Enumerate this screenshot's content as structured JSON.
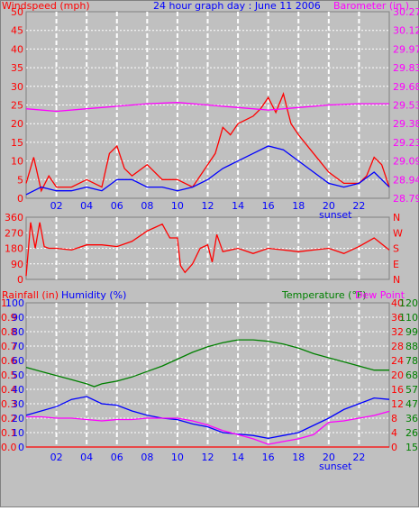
{
  "title": "24 hour graph day : June 11 2006",
  "colors": {
    "background": "#c0c0c0",
    "grid": "#ffffff",
    "wind_gust": "#ff0000",
    "wind_avg": "#0000ff",
    "barometer": "#ff00ff",
    "direction": "#ff0000",
    "rain": "#ff0000",
    "humidity": "#0000ff",
    "temperature": "#008000",
    "dewpoint": "#ff00ff"
  },
  "panel1": {
    "left_label": "Windspeed (mph)",
    "right_label": "Barometer (in.)",
    "left_ticks": [
      "50",
      "45",
      "40",
      "35",
      "30",
      "25",
      "20",
      "15",
      "10",
      "5",
      "0"
    ],
    "right_ticks": [
      "30.27",
      "30.12",
      "29.97",
      "29.83",
      "29.68",
      "29.53",
      "29.38",
      "29.23",
      "29.09",
      "28.94",
      "28.79"
    ]
  },
  "panel2": {
    "left_ticks": [
      "360",
      "270",
      "180",
      "90",
      "0"
    ],
    "right_ticks": [
      "N",
      "W",
      "S",
      "E",
      "N"
    ]
  },
  "panel3": {
    "rain_label": "Rainfall (in)",
    "humidity_label": "Humidity (%)",
    "temp_label": "Temperature (°F)",
    "dew_label": "Dew Point",
    "rain_ticks": [
      "1",
      "0.9",
      "0.8",
      "0.7",
      "0.6",
      "0.5",
      "0.4",
      "0.3",
      "0.2",
      "0.1",
      "0.0"
    ],
    "humidity_ticks": [
      "100",
      "90",
      "80",
      "70",
      "60",
      "50",
      "40",
      "30",
      "20",
      "10",
      "0"
    ],
    "celsius_ticks": [
      "40",
      "36",
      "32",
      "28",
      "24",
      "20",
      "16",
      "12",
      "8",
      "4",
      "0"
    ],
    "fahrenheit_ticks": [
      "120",
      "110",
      "99",
      "88",
      "78",
      "68",
      "57",
      "47",
      "36",
      "26",
      "15"
    ]
  },
  "x_ticks": [
    "02",
    "04",
    "06",
    "08",
    "10",
    "12",
    "14",
    "16",
    "18",
    "20",
    "22"
  ],
  "sunset_label": "sunset",
  "chart_data": [
    {
      "type": "line",
      "ylim": [
        0,
        50
      ],
      "y2lim": [
        28.79,
        30.27
      ],
      "xlim": [
        0,
        24
      ],
      "series": [
        {
          "axis": "left",
          "x": [
            0,
            0.5,
            1,
            1.5,
            2,
            3,
            4,
            5,
            5.5,
            6,
            6.5,
            7,
            8,
            9,
            10,
            11,
            12,
            12.5,
            13,
            13.5,
            14,
            14.5,
            15,
            15.5,
            16,
            16.5,
            17,
            17.5,
            18,
            19,
            20,
            21,
            22,
            22.5,
            23,
            23.5,
            24
          ],
          "values": [
            4,
            11,
            2,
            6,
            3,
            3,
            5,
            3,
            12,
            14,
            8,
            6,
            9,
            5,
            5,
            3,
            9,
            12,
            19,
            17,
            20,
            21,
            22,
            24,
            27,
            23,
            28,
            20,
            17,
            12,
            7,
            4,
            4,
            6,
            11,
            9,
            3
          ]
        },
        {
          "axis": "left",
          "x": [
            0,
            1,
            2,
            3,
            4,
            5,
            6,
            7,
            8,
            9,
            10,
            11,
            12,
            13,
            14,
            15,
            16,
            17,
            18,
            19,
            20,
            21,
            22,
            23,
            24
          ],
          "values": [
            1,
            3,
            2,
            2,
            3,
            2,
            5,
            5,
            3,
            3,
            2,
            3,
            5,
            8,
            10,
            12,
            14,
            13,
            10,
            7,
            4,
            3,
            4,
            7,
            3
          ]
        },
        {
          "axis": "right",
          "x": [
            0,
            2,
            4,
            6,
            8,
            10,
            12,
            14,
            16,
            18,
            20,
            22,
            24
          ],
          "values": [
            29.5,
            29.48,
            29.5,
            29.52,
            29.54,
            29.55,
            29.53,
            29.51,
            29.49,
            29.51,
            29.53,
            29.54,
            29.54
          ]
        }
      ]
    },
    {
      "type": "line",
      "ylim": [
        0,
        360
      ],
      "xlim": [
        0,
        24
      ],
      "series": [
        {
          "x": [
            0,
            0.3,
            0.6,
            0.9,
            1.2,
            1.5,
            2,
            3,
            4,
            5,
            6,
            7,
            8,
            8.5,
            9,
            9.5,
            10,
            10.2,
            10.5,
            11,
            11.5,
            12,
            12.3,
            12.6,
            13,
            14,
            15,
            16,
            17,
            18,
            19,
            20,
            21,
            22,
            23,
            24
          ],
          "values": [
            20,
            330,
            180,
            330,
            190,
            180,
            180,
            170,
            200,
            200,
            190,
            220,
            280,
            300,
            320,
            240,
            240,
            80,
            40,
            90,
            180,
            200,
            100,
            260,
            160,
            180,
            150,
            180,
            170,
            160,
            170,
            180,
            150,
            190,
            240,
            170
          ]
        }
      ]
    },
    {
      "type": "line",
      "xlim": [
        0,
        24
      ],
      "series": [
        {
          "axis": "rain",
          "ylim": [
            0,
            1
          ],
          "x": [
            0,
            24
          ],
          "values": [
            0,
            0
          ]
        },
        {
          "axis": "humidity",
          "ylim": [
            0,
            100
          ],
          "x": [
            0,
            1,
            2,
            3,
            4,
            5,
            6,
            7,
            8,
            9,
            10,
            11,
            12,
            13,
            14,
            15,
            15.5,
            16,
            17,
            18,
            19,
            20,
            21,
            22,
            23,
            24
          ],
          "values": [
            22,
            25,
            28,
            33,
            35,
            30,
            29,
            25,
            22,
            20,
            19,
            16,
            14,
            10,
            9,
            8,
            7,
            6,
            8,
            10,
            15,
            20,
            26,
            30,
            34,
            33
          ]
        },
        {
          "axis": "temp_f",
          "ylim": [
            15,
            120
          ],
          "x": [
            0,
            1,
            2,
            3,
            4,
            4.5,
            5,
            6,
            7,
            8,
            9,
            10,
            11,
            12,
            13,
            14,
            15,
            16,
            17,
            18,
            19,
            20,
            21,
            22,
            23,
            24
          ],
          "values": [
            73,
            70,
            67,
            64,
            61,
            59,
            61,
            63,
            66,
            70,
            74,
            79,
            84,
            88,
            91,
            93,
            93,
            92,
            90,
            87,
            83,
            80,
            77,
            74,
            71,
            71
          ]
        },
        {
          "axis": "temp_f",
          "ylim": [
            15,
            120
          ],
          "x": [
            0,
            1,
            2,
            3,
            4,
            5,
            6,
            7,
            8,
            9,
            10,
            11,
            12,
            13,
            14,
            15,
            16,
            17,
            18,
            19,
            20,
            21,
            22,
            23,
            24
          ],
          "values": [
            37,
            37,
            36,
            36,
            35,
            34,
            35,
            35,
            36,
            36,
            36,
            34,
            31,
            27,
            24,
            21,
            17,
            19,
            21,
            24,
            33,
            34,
            36,
            38,
            41
          ]
        }
      ]
    }
  ]
}
